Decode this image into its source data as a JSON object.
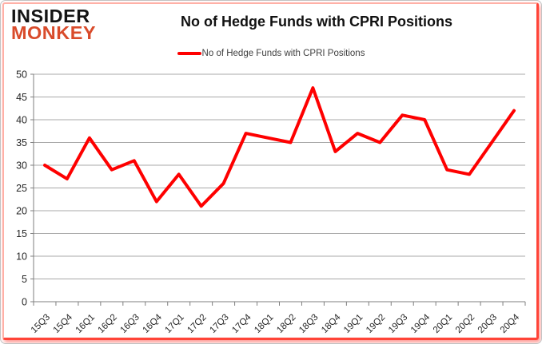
{
  "logo": {
    "line1": "INSIDER",
    "line2": "MONKEY"
  },
  "header": {
    "title": "No of Hedge Funds with CPRI Positions"
  },
  "legend": {
    "label": "No of Hedge Funds with CPRI Positions",
    "swatch_color": "#fe0000"
  },
  "colors": {
    "series_line": "#fe0000",
    "gridline": "#a8a8a8",
    "axis": "#7f7f7f",
    "tick_label": "#262626",
    "logo_accent": "#d94b2b",
    "frame_border": "#ff4438"
  },
  "chart_data": {
    "type": "line",
    "title": "No of Hedge Funds with CPRI Positions",
    "xlabel": "",
    "ylabel": "",
    "ylim": [
      0,
      50
    ],
    "ytick_step": 5,
    "yticks": [
      0,
      5,
      10,
      15,
      20,
      25,
      30,
      35,
      40,
      45,
      50
    ],
    "grid": true,
    "legend_position": "top",
    "categories": [
      "15Q3",
      "15Q4",
      "16Q1",
      "16Q2",
      "16Q3",
      "16Q4",
      "17Q1",
      "17Q2",
      "17Q3",
      "17Q4",
      "18Q1",
      "18Q2",
      "18Q3",
      "18Q4",
      "19Q1",
      "19Q2",
      "19Q3",
      "19Q4",
      "20Q1",
      "20Q2",
      "20Q3",
      "20Q4"
    ],
    "series": [
      {
        "name": "No of Hedge Funds with CPRI Positions",
        "color": "#fe0000",
        "values": [
          30,
          27,
          36,
          29,
          31,
          22,
          28,
          21,
          26,
          37,
          36,
          35,
          47,
          33,
          37,
          35,
          41,
          40,
          29,
          28,
          35,
          42
        ]
      }
    ]
  }
}
